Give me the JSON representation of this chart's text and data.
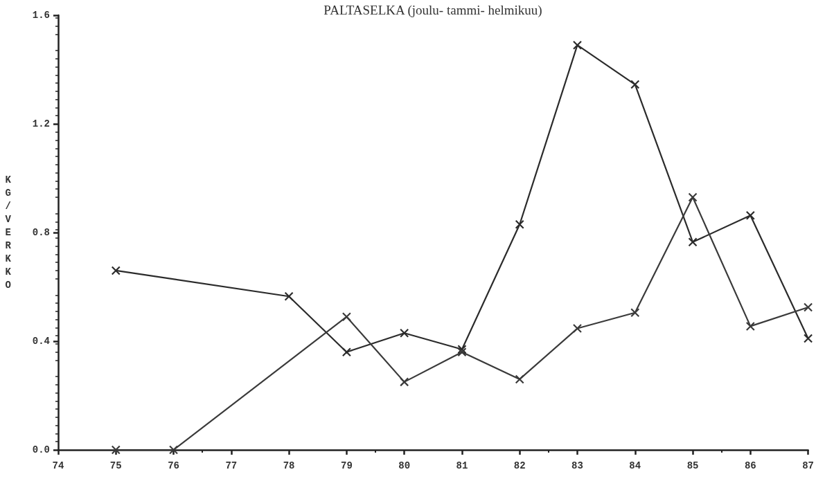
{
  "chart_data": {
    "type": "line",
    "title": "PALTASELKA (joulu- tammi- helmikuu)",
    "ylabel": "KG/VERKKO",
    "series": [
      {
        "color": "#2b2b2b",
        "marker": "cross",
        "x": [
          75,
          78,
          79,
          80,
          81,
          82,
          83,
          84,
          85,
          86,
          87
        ],
        "values": [
          0.66,
          0.565,
          0.36,
          0.43,
          0.37,
          0.83,
          1.49,
          1.345,
          0.765,
          0.863,
          0.41
        ]
      },
      {
        "color": "#3a3a3a",
        "marker": "cross",
        "x": [
          75,
          76,
          79,
          80,
          81,
          82,
          83,
          84,
          85,
          86,
          87
        ],
        "values": [
          0.0,
          0.0,
          0.49,
          0.25,
          0.36,
          0.26,
          0.447,
          0.505,
          0.93,
          0.455,
          0.525
        ]
      }
    ],
    "xlim": [
      74,
      87
    ],
    "xticks": [
      74,
      75,
      76,
      77,
      78,
      79,
      80,
      81,
      82,
      83,
      84,
      85,
      86,
      87
    ],
    "ylim": [
      0,
      1.6
    ],
    "yticks": [
      {
        "value": 0,
        "label": "0.0"
      },
      0.4,
      0.8,
      1.2,
      1.6
    ],
    "line_style": "solid"
  }
}
